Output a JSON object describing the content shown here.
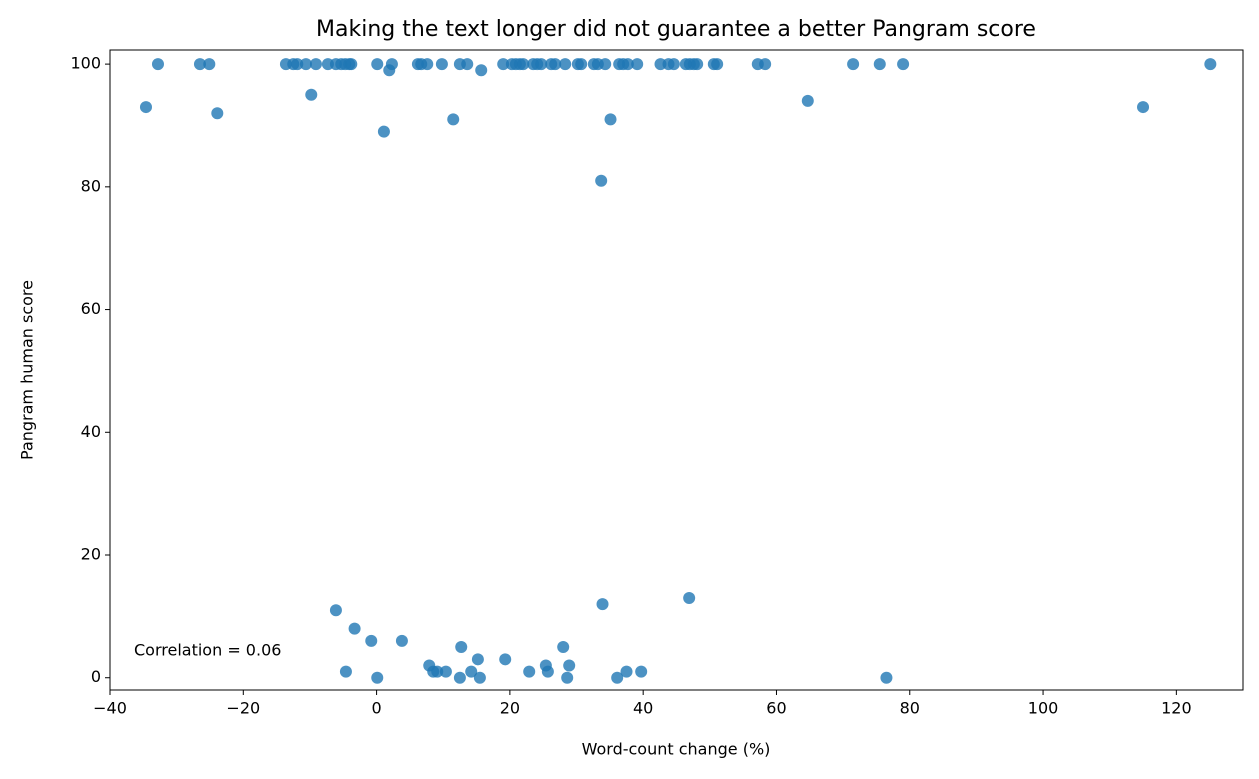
{
  "chart_data": {
    "type": "scatter",
    "title": "Making the text longer did not guarantee a better Pangram score",
    "xlabel": "Word-count change (%)",
    "ylabel": "Pangram human score",
    "annotation": "Correlation = 0.06",
    "color": "#1f77b4",
    "xlim": [
      -40,
      130
    ],
    "ylim": [
      -2,
      102.3
    ],
    "xticks": [
      {
        "value": -40,
        "label": "−40"
      },
      {
        "value": -20,
        "label": "−20"
      },
      0,
      20,
      40,
      60,
      80,
      100,
      120
    ],
    "yticks": [
      0,
      20,
      40,
      60,
      80,
      100
    ],
    "x": [
      -32.8,
      -26.5,
      -25.1,
      -13.6,
      -12.5,
      -11.9,
      -10.6,
      -9.1,
      -7.3,
      -6.1,
      -5.3,
      -4.7,
      -4.1,
      -3.8,
      0.1,
      2.3,
      6.2,
      6.7,
      7.6,
      9.8,
      12.5,
      13.6,
      19.0,
      20.3,
      20.9,
      21.5,
      22.0,
      23.5,
      24.1,
      24.7,
      26.2,
      26.8,
      28.3,
      30.2,
      30.7,
      32.6,
      33.2,
      34.3,
      36.4,
      37.0,
      37.7,
      39.1,
      42.6,
      43.8,
      44.6,
      46.4,
      47.0,
      47.6,
      48.1,
      50.6,
      51.1,
      57.2,
      58.3,
      71.5,
      75.5,
      79.0,
      125.1,
      -34.6,
      -23.9,
      -9.8,
      1.9,
      1.1,
      11.5,
      15.7,
      35.1,
      33.7,
      64.7,
      115.0,
      -6.1,
      -3.3,
      -0.8,
      3.8,
      -4.6,
      0.1,
      7.9,
      8.5,
      9.1,
      10.4,
      12.7,
      12.5,
      14.2,
      15.2,
      15.5,
      19.3,
      22.9,
      25.4,
      25.7,
      28.0,
      28.6,
      28.9,
      33.9,
      36.1,
      37.5,
      39.7,
      46.9,
      76.5
    ],
    "y": [
      100,
      100,
      100,
      100,
      100,
      100,
      100,
      100,
      100,
      100,
      100,
      100,
      100,
      100,
      100,
      100,
      100,
      100,
      100,
      100,
      100,
      100,
      100,
      100,
      100,
      100,
      100,
      100,
      100,
      100,
      100,
      100,
      100,
      100,
      100,
      100,
      100,
      100,
      100,
      100,
      100,
      100,
      100,
      100,
      100,
      100,
      100,
      100,
      100,
      100,
      100,
      100,
      100,
      100,
      100,
      100,
      100,
      93,
      92,
      95,
      99,
      89,
      91,
      99,
      91,
      81,
      94,
      93,
      11,
      8,
      6,
      6,
      1,
      0,
      2,
      1,
      1,
      1,
      5,
      0,
      1,
      3,
      0,
      3,
      1,
      2,
      1,
      5,
      0,
      2,
      12,
      0,
      1,
      1,
      13,
      0
    ]
  }
}
